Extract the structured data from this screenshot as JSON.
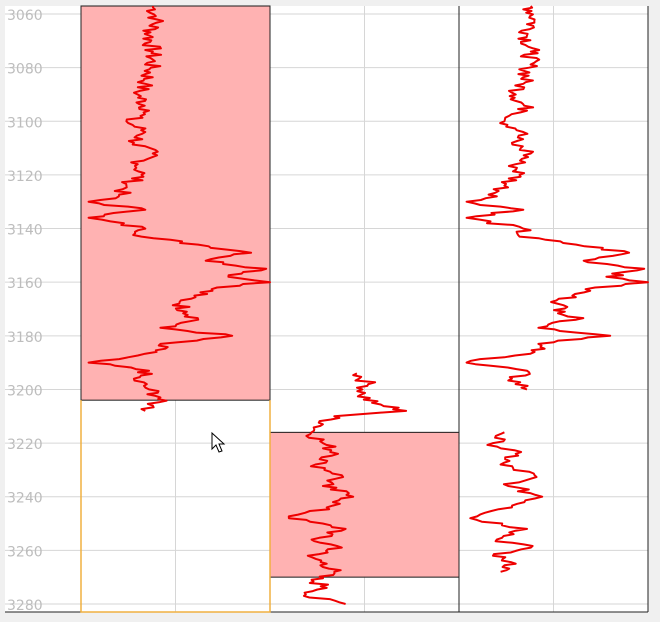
{
  "window": {
    "cursor_icon": "mouse-pointer-icon"
  },
  "colors": {
    "curve": "#ee0000",
    "zone_fill": "#ffb2b2",
    "zone_border": "#1a1a1a",
    "grid": "#d6d6d6",
    "tick_label": "#bdbdbd",
    "highlight_border": "#f0b040",
    "background": "#ffffff"
  },
  "chart_data": {
    "type": "line",
    "title": "",
    "ylabel": "",
    "ylim": [
      3057,
      3283
    ],
    "y_inverted": true,
    "grid": true,
    "yticks": [
      "3060",
      "3080",
      "3100",
      "3120",
      "3140",
      "3160",
      "3180",
      "3200",
      "3220",
      "3240",
      "3260",
      "3280"
    ],
    "tracks": [
      {
        "id": "track-1",
        "x_range": [
          0,
          100
        ],
        "zones": [
          {
            "top": 3057,
            "bottom": 3204
          }
        ],
        "highlighted": true,
        "series": [
          {
            "depth": [
              3057,
              3062,
              3068,
              3074,
              3080,
              3086,
              3090,
              3096,
              3100,
              3104,
              3108,
              3112,
              3116,
              3120,
              3124,
              3128,
              3130,
              3133,
              3136,
              3140,
              3143,
              3146,
              3149,
              3152,
              3155,
              3158,
              3160,
              3162,
              3165,
              3168,
              3171,
              3174,
              3177,
              3180,
              3183,
              3186,
              3190,
              3193,
              3196,
              3200,
              3203,
              3206,
              3208
            ],
            "value": [
              38,
              40,
              36,
              38,
              37,
              34,
              30,
              36,
              24,
              34,
              28,
              38,
              30,
              32,
              24,
              20,
              4,
              34,
              4,
              34,
              32,
              62,
              90,
              66,
              98,
              78,
              100,
              72,
              60,
              52,
              56,
              62,
              42,
              80,
              42,
              40,
              4,
              36,
              28,
              36,
              42,
              38,
              34
            ]
          }
        ]
      },
      {
        "id": "track-2",
        "x_range": [
          0,
          100
        ],
        "zones": [
          {
            "top": 3216,
            "bottom": 3270
          }
        ],
        "highlighted": false,
        "series": [
          {
            "depth": [
              3194,
              3198,
              3202,
              3205,
              3208,
              3210,
              3213,
              3216,
              3220,
              3224,
              3228,
              3232,
              3236,
              3240,
              3244,
              3248,
              3252,
              3256,
              3259,
              3262,
              3265,
              3268,
              3271,
              3274,
              3277,
              3280
            ],
            "value": [
              46,
              52,
              48,
              54,
              72,
              34,
              28,
              22,
              28,
              36,
              24,
              38,
              28,
              44,
              30,
              10,
              40,
              22,
              38,
              20,
              30,
              34,
              22,
              30,
              18,
              40
            ]
          }
        ]
      },
      {
        "id": "track-3",
        "x_range": [
          0,
          100
        ],
        "zones": [],
        "highlighted": false,
        "series": [
          {
            "depth": [
              3057,
              3062,
              3068,
              3074,
              3080,
              3086,
              3090,
              3096,
              3100,
              3104,
              3108,
              3112,
              3116,
              3120,
              3124,
              3128,
              3130,
              3133,
              3136,
              3140,
              3143,
              3146,
              3149,
              3152,
              3155,
              3158,
              3160,
              3162,
              3165,
              3168,
              3171,
              3174,
              3177,
              3180,
              3183,
              3186,
              3190,
              3193,
              3196,
              3200
            ],
            "value": [
              38,
              40,
              36,
              38,
              37,
              34,
              30,
              36,
              24,
              34,
              28,
              38,
              30,
              32,
              24,
              20,
              4,
              34,
              4,
              34,
              32,
              62,
              90,
              66,
              98,
              78,
              100,
              72,
              60,
              52,
              56,
              62,
              42,
              80,
              42,
              40,
              4,
              36,
              28,
              36
            ]
          },
          {
            "depth": [
              3216,
              3220,
              3224,
              3228,
              3232,
              3236,
              3240,
              3244,
              3248,
              3252,
              3256,
              3259,
              3262,
              3265,
              3268
            ],
            "value": [
              24,
              18,
              30,
              22,
              40,
              26,
              44,
              28,
              6,
              36,
              20,
              38,
              18,
              30,
              22
            ]
          }
        ]
      }
    ]
  }
}
